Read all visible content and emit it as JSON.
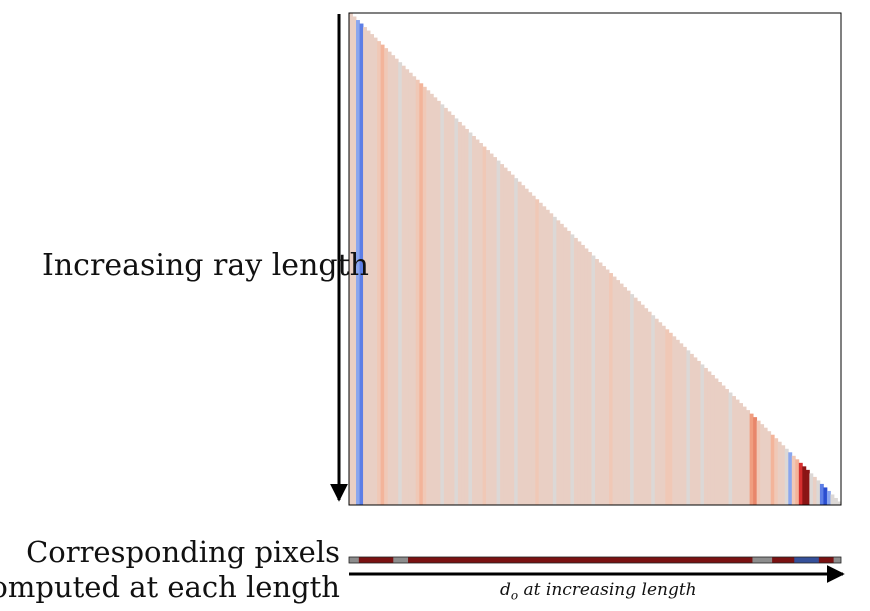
{
  "labels": {
    "ray_length": "Increasing ray length",
    "pixels_line1": "Corresponding pixels",
    "pixels_line2": "computed at each length",
    "axis_caption_var": "d",
    "axis_caption_sub": "o",
    "axis_caption_rest": " at increasing length"
  },
  "colors": {
    "neutral": "#dcd8d6",
    "light_peach": "#e9cfc4",
    "peach": "#f0c8b6",
    "light_salmon": "#f3b49a",
    "salmon": "#f09d7f",
    "orange_red": "#e8866a",
    "red": "#d62f2f",
    "dark_red": "#8b1515",
    "light_blue": "#8aa6ee",
    "blue": "#5d7ee6",
    "dark_blue": "#2a4ed0",
    "strip_base": "#7a1212",
    "strip_grey": "#8d8d8d",
    "strip_blue": "#35509a"
  },
  "heatmap": {
    "columns": 140,
    "default_color": "light_peach",
    "stripes": [
      {
        "col": 2,
        "color": "light_blue"
      },
      {
        "col": 3,
        "color": "blue"
      },
      {
        "col": 8,
        "color": "peach"
      },
      {
        "col": 9,
        "color": "light_salmon"
      },
      {
        "col": 10,
        "color": "peach"
      },
      {
        "col": 14,
        "color": "neutral"
      },
      {
        "col": 19,
        "color": "peach"
      },
      {
        "col": 20,
        "color": "light_salmon"
      },
      {
        "col": 21,
        "color": "peach"
      },
      {
        "col": 26,
        "color": "neutral"
      },
      {
        "col": 30,
        "color": "neutral"
      },
      {
        "col": 34,
        "color": "neutral"
      },
      {
        "col": 38,
        "color": "peach"
      },
      {
        "col": 42,
        "color": "neutral"
      },
      {
        "col": 47,
        "color": "neutral"
      },
      {
        "col": 53,
        "color": "peach"
      },
      {
        "col": 58,
        "color": "neutral"
      },
      {
        "col": 63,
        "color": "neutral"
      },
      {
        "col": 69,
        "color": "neutral"
      },
      {
        "col": 74,
        "color": "peach"
      },
      {
        "col": 80,
        "color": "neutral"
      },
      {
        "col": 86,
        "color": "neutral"
      },
      {
        "col": 90,
        "color": "peach"
      },
      {
        "col": 91,
        "color": "peach"
      },
      {
        "col": 96,
        "color": "neutral"
      },
      {
        "col": 100,
        "color": "neutral"
      },
      {
        "col": 108,
        "color": "neutral"
      },
      {
        "col": 114,
        "color": "salmon"
      },
      {
        "col": 115,
        "color": "orange_red"
      },
      {
        "col": 116,
        "color": "peach"
      },
      {
        "col": 120,
        "color": "light_salmon"
      },
      {
        "col": 121,
        "color": "peach"
      },
      {
        "col": 124,
        "color": "neutral"
      },
      {
        "col": 125,
        "color": "light_blue"
      },
      {
        "col": 126,
        "color": "peach"
      },
      {
        "col": 127,
        "color": "light_salmon"
      },
      {
        "col": 128,
        "color": "red"
      },
      {
        "col": 129,
        "color": "dark_red"
      },
      {
        "col": 130,
        "color": "dark_red"
      },
      {
        "col": 131,
        "color": "neutral"
      },
      {
        "col": 133,
        "color": "neutral"
      },
      {
        "col": 134,
        "color": "blue"
      },
      {
        "col": 135,
        "color": "dark_blue"
      },
      {
        "col": 136,
        "color": "light_blue"
      },
      {
        "col": 137,
        "color": "neutral"
      },
      {
        "col": 138,
        "color": "neutral"
      },
      {
        "col": 139,
        "color": "neutral"
      }
    ]
  },
  "strip": {
    "base_color": "strip_base",
    "segments": [
      {
        "from": 0.0,
        "to": 0.02,
        "color": "strip_grey"
      },
      {
        "from": 0.09,
        "to": 0.12,
        "color": "strip_grey"
      },
      {
        "from": 0.82,
        "to": 0.86,
        "color": "strip_grey"
      },
      {
        "from": 0.905,
        "to": 0.955,
        "color": "strip_blue"
      },
      {
        "from": 0.985,
        "to": 1.0,
        "color": "strip_grey"
      }
    ]
  }
}
